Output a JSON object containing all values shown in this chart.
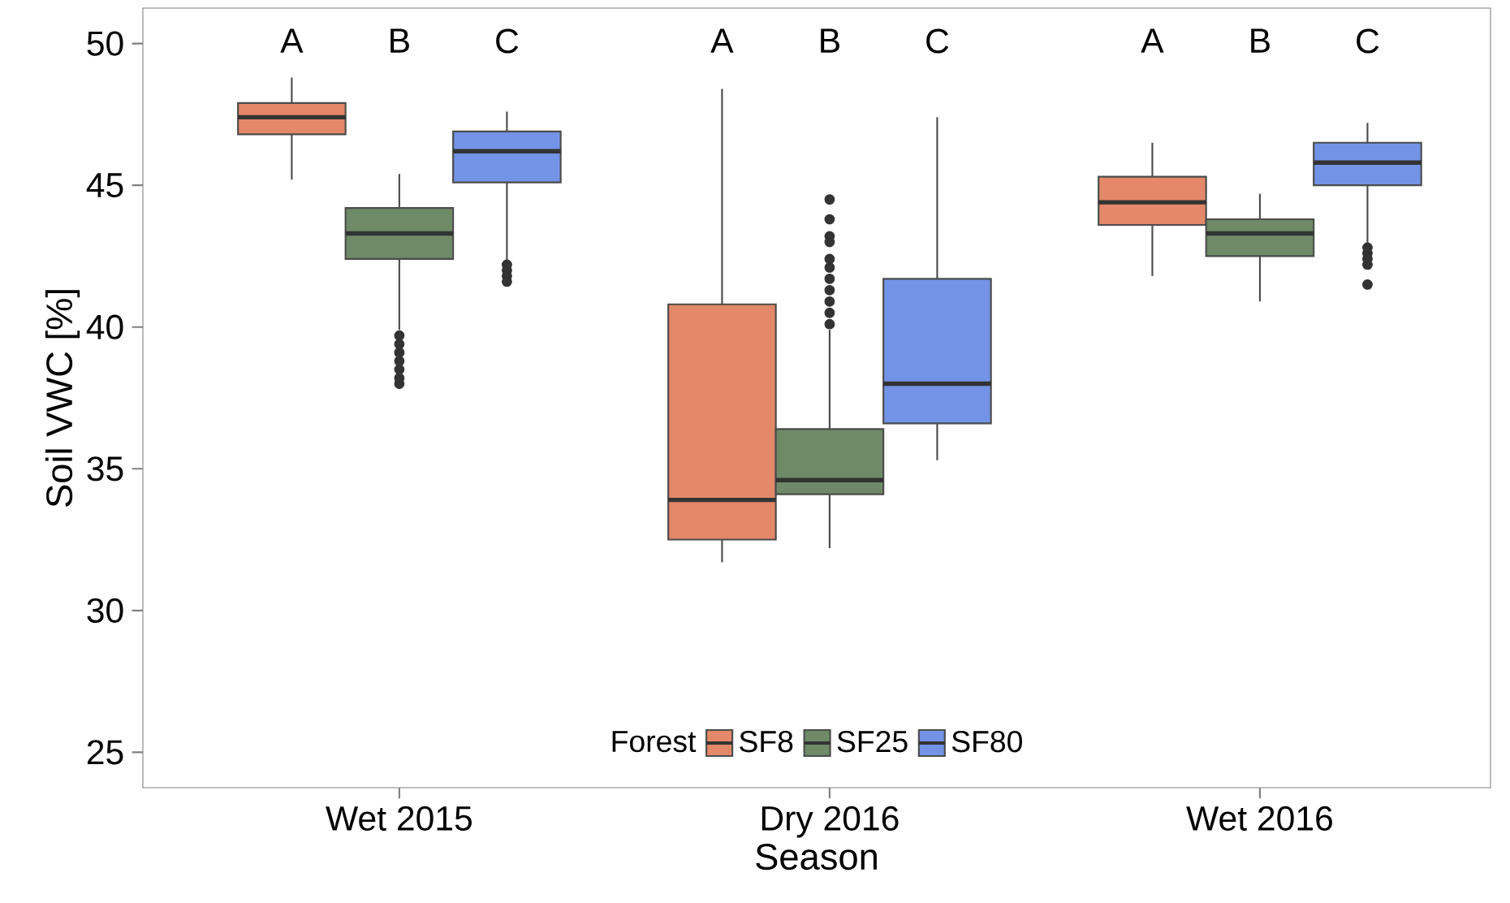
{
  "chart_data": {
    "type": "box",
    "xlabel": "Season",
    "ylabel": "Soil VWC [%]",
    "legend_title": "Forest",
    "legend": "bottom",
    "categories": [
      "Wet 2015",
      "Dry 2016",
      "Wet 2016"
    ],
    "ylim": [
      23.75,
      51.25
    ],
    "yticks": [
      25,
      30,
      35,
      40,
      45,
      50
    ],
    "series": [
      {
        "name": "SF8",
        "color": "#e38869",
        "boxes": [
          {
            "low": 45.2,
            "q1": 46.8,
            "median": 47.4,
            "q3": 47.9,
            "high": 48.8
          },
          {
            "low": 31.7,
            "q1": 32.5,
            "median": 33.9,
            "q3": 40.8,
            "high": 48.4
          },
          {
            "low": 41.8,
            "q1": 43.6,
            "median": 44.4,
            "q3": 45.3,
            "high": 46.5
          }
        ]
      },
      {
        "name": "SF25",
        "color": "#6e8a66",
        "boxes": [
          {
            "low": 39.9,
            "q1": 42.4,
            "median": 43.3,
            "q3": 44.2,
            "high": 45.4,
            "outliers": [
              39.7,
              39.4,
              39.1,
              38.8,
              38.5,
              38.2,
              38.0
            ]
          },
          {
            "low": 32.2,
            "q1": 34.1,
            "median": 34.6,
            "q3": 36.4,
            "high": 39.9,
            "outliers": [
              40.1,
              40.5,
              40.9,
              41.3,
              41.7,
              42.1,
              42.4,
              43.0,
              43.2,
              43.8,
              44.5
            ]
          },
          {
            "low": 40.9,
            "q1": 42.5,
            "median": 43.3,
            "q3": 43.8,
            "high": 44.7
          }
        ]
      },
      {
        "name": "SF80",
        "color": "#7393e6",
        "boxes": [
          {
            "low": 42.3,
            "q1": 45.1,
            "median": 46.2,
            "q3": 46.9,
            "high": 47.6,
            "outliers": [
              42.2,
              42.0,
              41.8,
              41.6
            ]
          },
          {
            "low": 35.3,
            "q1": 36.6,
            "median": 38.0,
            "q3": 41.7,
            "high": 47.4
          },
          {
            "low": 42.9,
            "q1": 45.0,
            "median": 45.8,
            "q3": 46.5,
            "high": 47.2,
            "outliers": [
              42.8,
              42.6,
              42.4,
              42.2,
              41.5
            ]
          }
        ]
      }
    ],
    "annotations": [
      "A",
      "B",
      "C",
      "A",
      "B",
      "C",
      "A",
      "B",
      "C"
    ]
  }
}
